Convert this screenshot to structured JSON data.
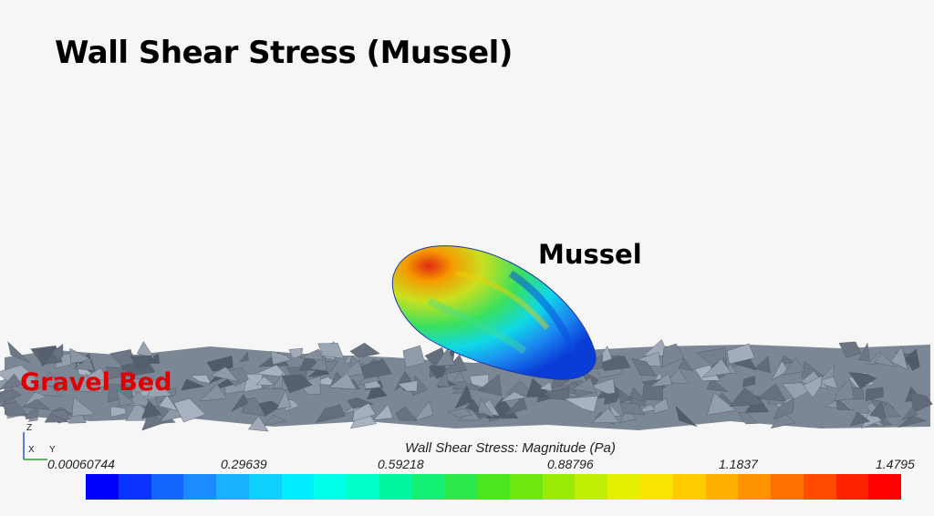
{
  "title": "Wall Shear Stress (Mussel)",
  "labels": {
    "mussel": "Mussel",
    "gravel_bed": "Gravel Bed"
  },
  "colorbar": {
    "title": "Wall Shear Stress: Magnitude (Pa)",
    "ticks": [
      "0.00060744",
      "0.29639",
      "0.59218",
      "0.88796",
      "1.1837",
      "1.4795"
    ],
    "min": 0.00060744,
    "max": 1.4795,
    "colors": [
      "#0000ff",
      "#0a33ff",
      "#1466ff",
      "#1a8cff",
      "#18b0ff",
      "#10d0ff",
      "#00eeff",
      "#00ffe8",
      "#00ffc8",
      "#00f7a0",
      "#12ef74",
      "#2ce84a",
      "#4ce620",
      "#70e810",
      "#98ec08",
      "#c0ee04",
      "#e4f000",
      "#f8e400",
      "#ffcc00",
      "#ffb000",
      "#ff9200",
      "#ff7000",
      "#ff4a00",
      "#ff2200",
      "#ff0000"
    ]
  },
  "axes_triad": {
    "z": "Z",
    "x": "X",
    "y": "Y"
  },
  "colors": {
    "gravel": "#7b8795",
    "background": "#f6f6f6",
    "gravel_label": "#e00000"
  }
}
